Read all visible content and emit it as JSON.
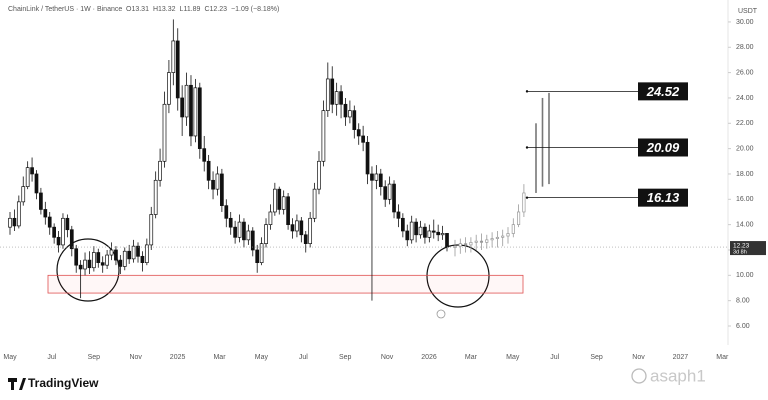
{
  "chart_data": {
    "type": "candlestick",
    "title": "ChainLink / TetherUS · 1W · Binance",
    "ohlc_legend": [
      "O13.31",
      "H13.32",
      "L11.89",
      "C12.23",
      "−1.09 (−8.18%)"
    ],
    "currency": "USDT",
    "countdown": "3d 8h",
    "open": [
      13.8,
      14.5,
      13.9,
      15.8,
      17.0,
      18.5,
      18.0,
      16.5,
      15.2,
      14.6,
      13.8,
      13.0,
      12.4,
      14.5,
      13.6,
      12.1,
      10.8,
      10.5,
      11.2,
      10.6,
      11.8,
      11.0,
      10.8,
      11.6,
      12.0,
      11.2,
      10.7,
      11.9,
      11.3,
      12.3,
      11.5,
      11.0,
      12.4,
      14.8,
      17.5,
      19.0,
      23.5,
      26.0,
      28.5,
      24.0,
      22.5,
      25.0,
      21.0,
      24.8,
      20.0,
      19.0,
      17.5,
      16.8,
      18.0,
      15.5,
      14.5,
      13.8,
      13.0,
      14.2,
      12.8,
      13.5,
      12.0,
      11.0,
      12.5,
      14.0,
      15.0,
      16.8,
      15.2,
      16.2,
      14.0,
      13.5,
      14.3,
      13.2,
      12.5,
      14.5,
      16.8,
      19.0,
      23.0,
      25.5,
      23.5,
      24.5,
      23.5,
      22.5,
      23.0,
      21.5,
      21.0,
      20.5,
      18.0,
      17.5,
      18.0,
      17.0,
      16.0,
      17.2,
      15.0,
      14.5,
      13.5,
      12.8,
      14.2,
      13.2,
      13.8,
      13.0,
      13.5,
      13.4,
      13.2,
      13.31
    ],
    "high": [
      15.0,
      15.2,
      16.3,
      17.8,
      19.0,
      19.3,
      18.3,
      16.9,
      15.8,
      15.0,
      14.1,
      13.5,
      14.9,
      14.8,
      13.9,
      12.4,
      11.2,
      11.8,
      11.9,
      12.3,
      12.1,
      11.5,
      12.0,
      12.6,
      12.3,
      11.6,
      12.2,
      12.4,
      12.8,
      12.6,
      11.9,
      12.9,
      15.4,
      18.2,
      20.0,
      24.5,
      27.0,
      30.2,
      29.5,
      25.0,
      26.0,
      25.8,
      25.5,
      25.2,
      21.0,
      19.5,
      18.2,
      18.6,
      18.4,
      16.0,
      15.0,
      14.3,
      14.8,
      14.5,
      14.0,
      13.8,
      12.4,
      13.0,
      14.5,
      15.6,
      17.3,
      17.0,
      16.7,
      16.5,
      14.5,
      14.8,
      14.6,
      13.5,
      15.0,
      17.3,
      19.8,
      23.8,
      26.8,
      26.5,
      25.2,
      25.0,
      24.0,
      23.8,
      23.4,
      22.0,
      21.8,
      21.0,
      18.6,
      18.7,
      18.4,
      17.5,
      17.8,
      17.5,
      15.6,
      14.9,
      14.0,
      14.7,
      14.5,
      14.3,
      14.1,
      14.0,
      14.4,
      14.0,
      13.9,
      13.32
    ],
    "low": [
      13.2,
      13.5,
      13.7,
      15.5,
      16.8,
      17.4,
      16.0,
      14.8,
      14.0,
      13.2,
      12.5,
      11.8,
      12.1,
      13.0,
      11.5,
      10.2,
      8.2,
      10.0,
      10.1,
      10.3,
      10.6,
      10.2,
      10.5,
      11.2,
      10.8,
      10.1,
      10.4,
      10.9,
      11.0,
      11.0,
      10.3,
      10.8,
      12.0,
      14.5,
      17.0,
      18.5,
      22.8,
      25.0,
      23.0,
      21.0,
      21.8,
      20.2,
      20.5,
      19.2,
      18.2,
      16.8,
      16.0,
      16.3,
      15.0,
      13.8,
      13.2,
      12.5,
      12.6,
      12.2,
      12.4,
      11.5,
      10.2,
      10.8,
      12.2,
      13.6,
      14.7,
      14.8,
      14.8,
      13.6,
      12.9,
      13.0,
      12.6,
      11.8,
      12.2,
      14.2,
      16.4,
      18.6,
      22.5,
      22.8,
      22.6,
      22.4,
      21.8,
      22.0,
      20.8,
      20.3,
      19.8,
      17.2,
      8.0,
      16.8,
      16.3,
      15.4,
      15.6,
      14.5,
      13.8,
      13.0,
      12.3,
      12.5,
      12.6,
      12.9,
      12.5,
      12.6,
      12.9,
      12.7,
      12.8,
      11.89
    ],
    "close": [
      14.5,
      13.9,
      15.8,
      17.0,
      18.5,
      18.0,
      16.5,
      15.2,
      14.6,
      13.8,
      13.0,
      12.4,
      14.5,
      13.6,
      12.1,
      10.8,
      10.5,
      11.2,
      10.6,
      11.8,
      11.0,
      10.8,
      11.6,
      12.0,
      11.2,
      10.7,
      11.9,
      11.3,
      12.3,
      11.5,
      11.0,
      12.4,
      14.8,
      17.5,
      19.0,
      23.5,
      26.0,
      28.5,
      24.0,
      22.5,
      25.0,
      21.0,
      24.8,
      20.0,
      19.0,
      17.5,
      16.8,
      18.0,
      15.5,
      14.5,
      13.8,
      13.0,
      14.2,
      12.8,
      13.5,
      12.0,
      11.0,
      12.5,
      14.0,
      15.0,
      16.8,
      15.2,
      16.2,
      14.0,
      13.5,
      14.3,
      13.2,
      12.5,
      14.5,
      16.8,
      19.0,
      23.0,
      25.5,
      23.5,
      24.5,
      23.5,
      22.5,
      23.0,
      21.5,
      21.0,
      20.5,
      18.0,
      17.5,
      18.0,
      17.0,
      16.0,
      17.2,
      15.0,
      14.5,
      13.5,
      12.8,
      14.2,
      13.2,
      13.8,
      13.0,
      13.5,
      13.4,
      13.2,
      13.31,
      12.23
    ],
    "projection": {
      "open": [
        12.2,
        12.3,
        12.5,
        12.4,
        12.6,
        12.7,
        12.6,
        12.8,
        12.9,
        13.0,
        13.1,
        13.3,
        14.0,
        15.0
      ],
      "high": [
        12.8,
        12.9,
        13.0,
        13.0,
        13.2,
        13.3,
        13.2,
        13.4,
        13.5,
        13.6,
        13.8,
        14.5,
        15.6,
        17.2
      ],
      "low": [
        11.5,
        11.7,
        11.8,
        11.8,
        12.0,
        12.0,
        12.1,
        12.2,
        12.2,
        12.3,
        12.5,
        13.0,
        13.8,
        14.6
      ],
      "close": [
        12.3,
        12.5,
        12.4,
        12.6,
        12.7,
        12.6,
        12.8,
        12.9,
        13.0,
        13.1,
        13.3,
        14.0,
        15.0,
        16.5
      ],
      "spike_low": [
        16.5,
        17.0,
        17.2
      ],
      "spike_high": [
        22.0,
        24.0,
        24.4
      ]
    },
    "levels": [
      24.52,
      20.09,
      16.13
    ],
    "zone": [
      8.6,
      10.0
    ],
    "ylim": [
      4.5,
      31.1
    ],
    "yticks": [
      {
        "value": 6,
        "label": "6.00"
      },
      {
        "value": 8,
        "label": "8.00"
      },
      {
        "value": 10,
        "label": "10.00"
      },
      {
        "value": 12,
        "label": "12.00"
      },
      {
        "value": 14,
        "label": "14.00"
      },
      {
        "value": 16,
        "label": "16.00"
      },
      {
        "value": 18,
        "label": "18.00"
      },
      {
        "value": 20,
        "label": "20.00"
      },
      {
        "value": 22,
        "label": "22.00"
      },
      {
        "value": 24,
        "label": "24.00"
      },
      {
        "value": 26,
        "label": "26.00"
      },
      {
        "value": 28,
        "label": "28.00"
      },
      {
        "value": 30,
        "label": "30.00"
      }
    ],
    "xtick_labels": [
      "May",
      "Jul",
      "Sep",
      "Nov",
      "2025",
      "Mar",
      "May",
      "Jul",
      "Sep",
      "Nov",
      "2026",
      "Mar",
      "May",
      "Jul",
      "Sep",
      "Nov",
      "2027",
      "Mar"
    ],
    "brand": "TradingView",
    "watermark": "asaph1"
  }
}
